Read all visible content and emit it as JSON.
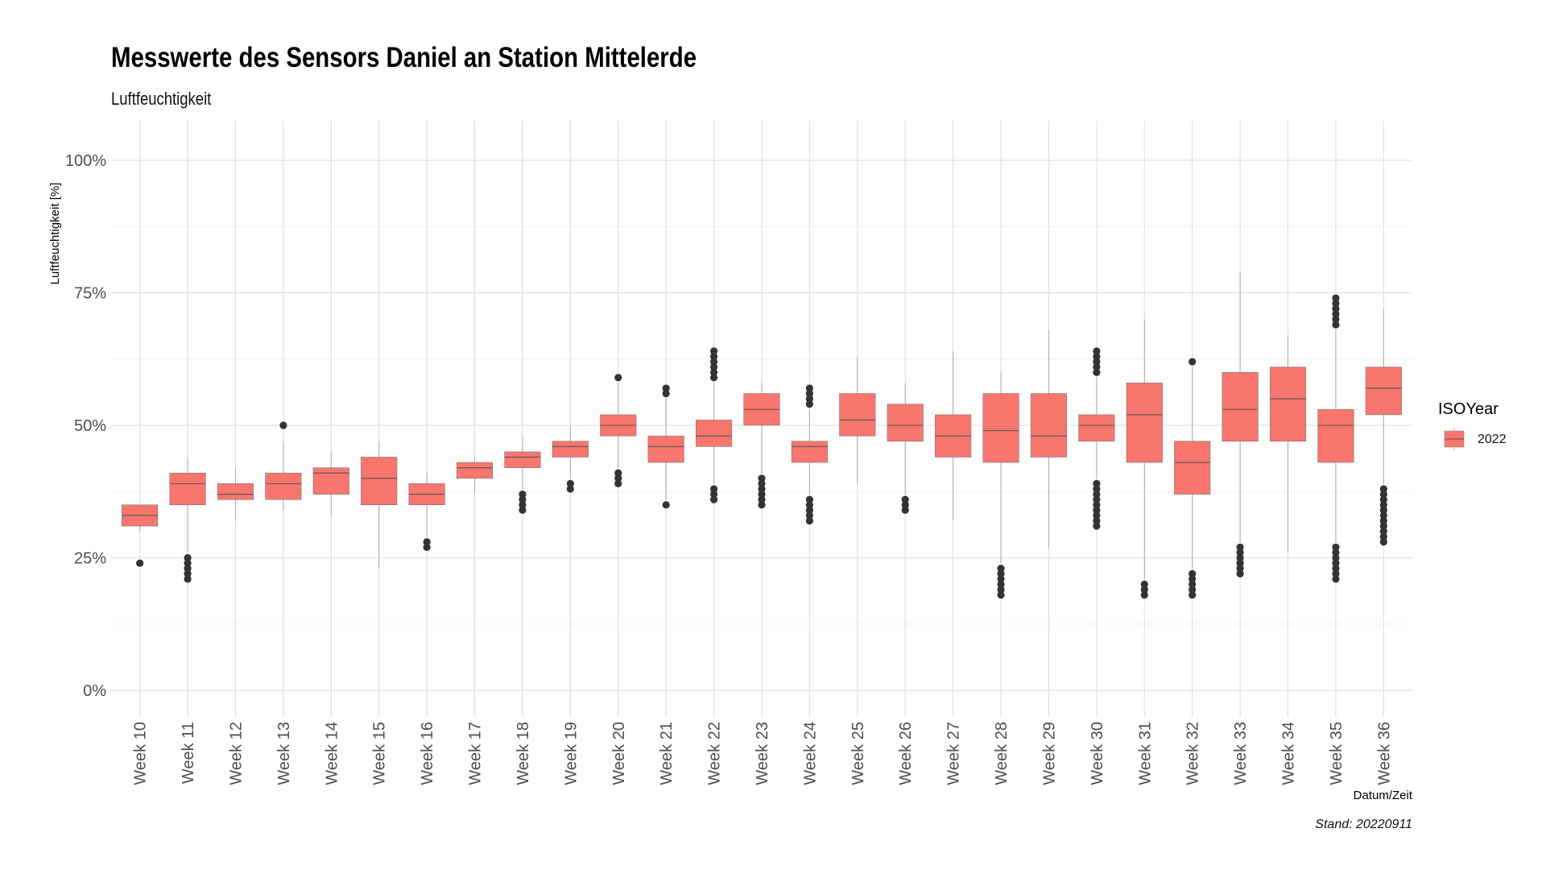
{
  "chart_data": {
    "type": "boxplot",
    "title": "Messwerte des Sensors Daniel an Station Mittelerde",
    "subtitle": "Luftfeuchtigkeit",
    "xlabel": "Datum/Zeit",
    "ylabel": "Luftfeuchtigkeit [%]",
    "caption": "Stand: 20220911",
    "ylim": [
      -5,
      105
    ],
    "yticks": [
      0,
      25,
      50,
      75,
      100
    ],
    "ytick_labels": [
      "0%",
      "25%",
      "50%",
      "75%",
      "100%"
    ],
    "grid": true,
    "legend": {
      "title": "ISOYear",
      "position": "right",
      "entries": [
        {
          "label": "2022",
          "color": "#F8766D"
        }
      ]
    },
    "series": [
      {
        "name": "2022",
        "color": "#F8766D",
        "boxes": [
          {
            "category": "Week 10",
            "whisker_low": 30,
            "q1": 31,
            "median": 33,
            "q3": 35,
            "whisker_high": 35,
            "outliers": [
              24
            ]
          },
          {
            "category": "Week 11",
            "whisker_low": 26,
            "q1": 35,
            "median": 39,
            "q3": 41,
            "whisker_high": 44,
            "outliers": [
              21,
              22,
              23,
              24,
              25
            ]
          },
          {
            "category": "Week 12",
            "whisker_low": 32,
            "q1": 36,
            "median": 37,
            "q3": 39,
            "whisker_high": 42,
            "outliers": []
          },
          {
            "category": "Week 13",
            "whisker_low": 34,
            "q1": 36,
            "median": 39,
            "q3": 41,
            "whisker_high": 47,
            "outliers": [
              50
            ]
          },
          {
            "category": "Week 14",
            "whisker_low": 33,
            "q1": 37,
            "median": 41,
            "q3": 42,
            "whisker_high": 45,
            "outliers": []
          },
          {
            "category": "Week 15",
            "whisker_low": 23,
            "q1": 35,
            "median": 40,
            "q3": 44,
            "whisker_high": 47,
            "outliers": []
          },
          {
            "category": "Week 16",
            "whisker_low": 29,
            "q1": 35,
            "median": 37,
            "q3": 39,
            "whisker_high": 41,
            "outliers": [
              27,
              28
            ]
          },
          {
            "category": "Week 17",
            "whisker_low": 37,
            "q1": 40,
            "median": 42,
            "q3": 43,
            "whisker_high": 44,
            "outliers": []
          },
          {
            "category": "Week 18",
            "whisker_low": 38,
            "q1": 42,
            "median": 44,
            "q3": 45,
            "whisker_high": 48,
            "outliers": [
              34,
              35,
              36,
              37
            ]
          },
          {
            "category": "Week 19",
            "whisker_low": 40,
            "q1": 44,
            "median": 46,
            "q3": 47,
            "whisker_high": 50,
            "outliers": [
              38,
              39
            ]
          },
          {
            "category": "Week 20",
            "whisker_low": 42,
            "q1": 48,
            "median": 50,
            "q3": 52,
            "whisker_high": 58,
            "outliers": [
              39,
              40,
              41,
              59
            ]
          },
          {
            "category": "Week 21",
            "whisker_low": 36,
            "q1": 43,
            "median": 46,
            "q3": 48,
            "whisker_high": 55,
            "outliers": [
              35,
              56,
              57
            ]
          },
          {
            "category": "Week 22",
            "whisker_low": 39,
            "q1": 46,
            "median": 48,
            "q3": 51,
            "whisker_high": 58,
            "outliers": [
              36,
              37,
              38,
              59,
              60,
              61,
              62,
              63,
              64
            ]
          },
          {
            "category": "Week 23",
            "whisker_low": 41,
            "q1": 50,
            "median": 53,
            "q3": 56,
            "whisker_high": 58,
            "outliers": [
              35,
              36,
              37,
              38,
              39,
              40
            ]
          },
          {
            "category": "Week 24",
            "whisker_low": 37,
            "q1": 43,
            "median": 46,
            "q3": 47,
            "whisker_high": 53,
            "outliers": [
              32,
              33,
              34,
              35,
              36,
              54,
              55,
              56,
              57
            ]
          },
          {
            "category": "Week 25",
            "whisker_low": 39,
            "q1": 48,
            "median": 51,
            "q3": 56,
            "whisker_high": 63,
            "outliers": []
          },
          {
            "category": "Week 26",
            "whisker_low": 37,
            "q1": 47,
            "median": 50,
            "q3": 54,
            "whisker_high": 58,
            "outliers": [
              34,
              35,
              36
            ]
          },
          {
            "category": "Week 27",
            "whisker_low": 32,
            "q1": 44,
            "median": 48,
            "q3": 52,
            "whisker_high": 64,
            "outliers": []
          },
          {
            "category": "Week 28",
            "whisker_low": 24,
            "q1": 43,
            "median": 49,
            "q3": 56,
            "whisker_high": 60,
            "outliers": [
              18,
              19,
              20,
              21,
              22,
              23
            ]
          },
          {
            "category": "Week 29",
            "whisker_low": 27,
            "q1": 44,
            "median": 48,
            "q3": 56,
            "whisker_high": 68,
            "outliers": []
          },
          {
            "category": "Week 30",
            "whisker_low": 40,
            "q1": 47,
            "median": 50,
            "q3": 52,
            "whisker_high": 59,
            "outliers": [
              31,
              32,
              33,
              34,
              35,
              36,
              37,
              38,
              39,
              60,
              61,
              62,
              63,
              64
            ]
          },
          {
            "category": "Week 31",
            "whisker_low": 21,
            "q1": 43,
            "median": 52,
            "q3": 58,
            "whisker_high": 70,
            "outliers": [
              18,
              19,
              20
            ]
          },
          {
            "category": "Week 32",
            "whisker_low": 23,
            "q1": 37,
            "median": 43,
            "q3": 47,
            "whisker_high": 61,
            "outliers": [
              18,
              19,
              20,
              21,
              22,
              62
            ]
          },
          {
            "category": "Week 33",
            "whisker_low": 28,
            "q1": 47,
            "median": 53,
            "q3": 60,
            "whisker_high": 79,
            "outliers": [
              22,
              23,
              24,
              25,
              26,
              27
            ]
          },
          {
            "category": "Week 34",
            "whisker_low": 26,
            "q1": 47,
            "median": 55,
            "q3": 61,
            "whisker_high": 67,
            "outliers": []
          },
          {
            "category": "Week 35",
            "whisker_low": 28,
            "q1": 43,
            "median": 50,
            "q3": 53,
            "whisker_high": 68,
            "outliers": [
              21,
              22,
              23,
              24,
              25,
              26,
              27,
              69,
              70,
              71,
              72,
              73,
              74
            ]
          },
          {
            "category": "Week 36",
            "whisker_low": 39,
            "q1": 52,
            "median": 57,
            "q3": 61,
            "whisker_high": 72,
            "outliers": [
              28,
              29,
              30,
              31,
              32,
              33,
              34,
              35,
              36,
              37,
              38
            ]
          }
        ]
      }
    ]
  }
}
